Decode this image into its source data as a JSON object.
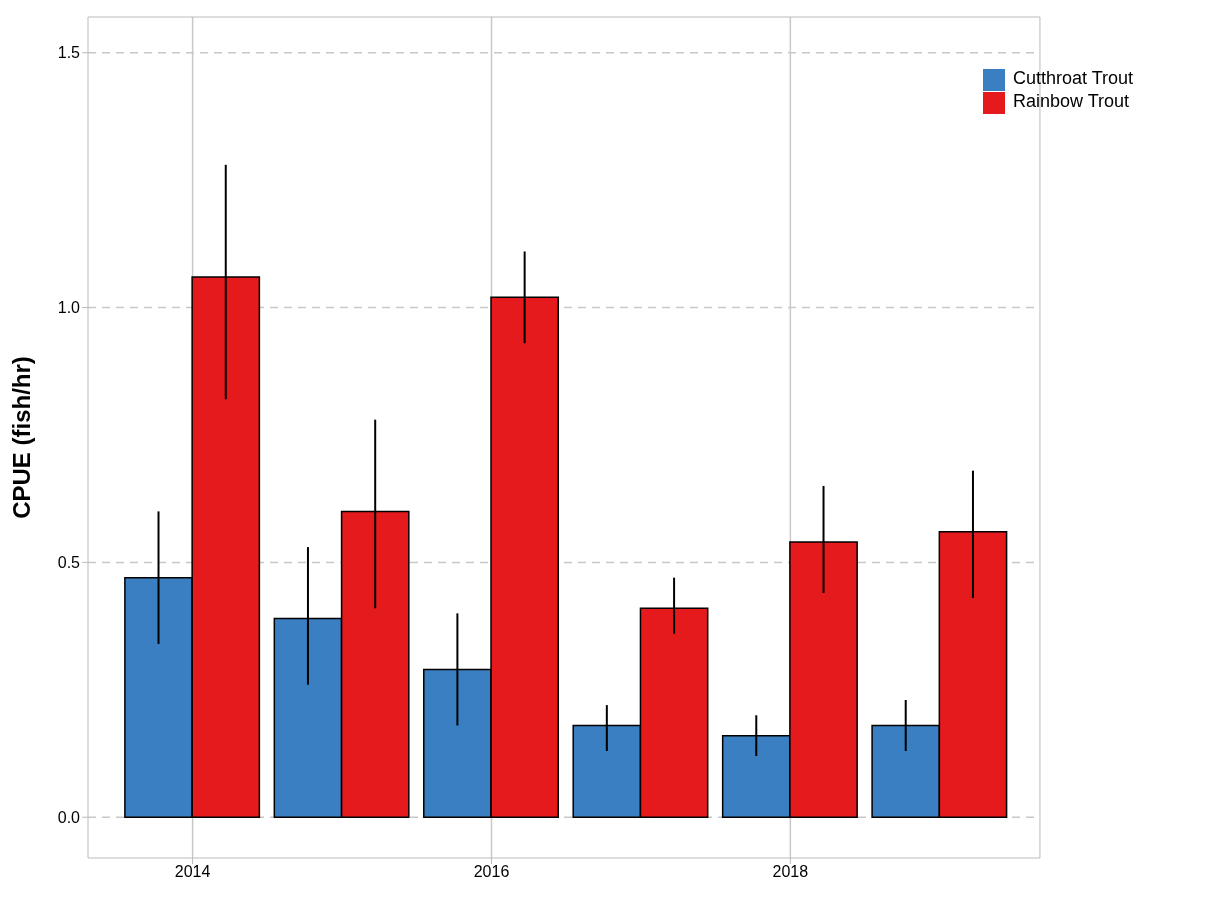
{
  "chart_data": {
    "type": "bar",
    "ylabel": "CPUE (fish/hr)",
    "x": [
      2014,
      2015,
      2016,
      2017,
      2018,
      2019
    ],
    "xlim": [
      2013.3,
      2019.67
    ],
    "xticks": [
      2014,
      2016,
      2018
    ],
    "ylim": [
      -0.08,
      1.57
    ],
    "yticks": [
      {
        "value": 0,
        "label": "0.0"
      },
      0.5,
      {
        "value": 1,
        "label": "1.0"
      },
      1.5
    ],
    "series": [
      {
        "name": "Cutthroat Trout",
        "color": "#3a7fc1",
        "values": [
          0.47,
          0.39,
          0.29,
          0.18,
          0.16,
          0.18
        ],
        "errors": [
          [
            0.34,
            0.6
          ],
          [
            0.26,
            0.53
          ],
          [
            0.18,
            0.4
          ],
          [
            0.13,
            0.22
          ],
          [
            0.12,
            0.2
          ],
          [
            0.13,
            0.23
          ]
        ]
      },
      {
        "name": "Rainbow Trout",
        "color": "#e41a1c",
        "values": [
          1.06,
          0.6,
          1.02,
          0.41,
          0.54,
          0.56
        ],
        "errors": [
          [
            0.82,
            1.28
          ],
          [
            0.41,
            0.78
          ],
          [
            0.93,
            1.11
          ],
          [
            0.36,
            0.47
          ],
          [
            0.44,
            0.65
          ],
          [
            0.43,
            0.68
          ]
        ]
      }
    ],
    "grid": true,
    "legend": "top right"
  }
}
